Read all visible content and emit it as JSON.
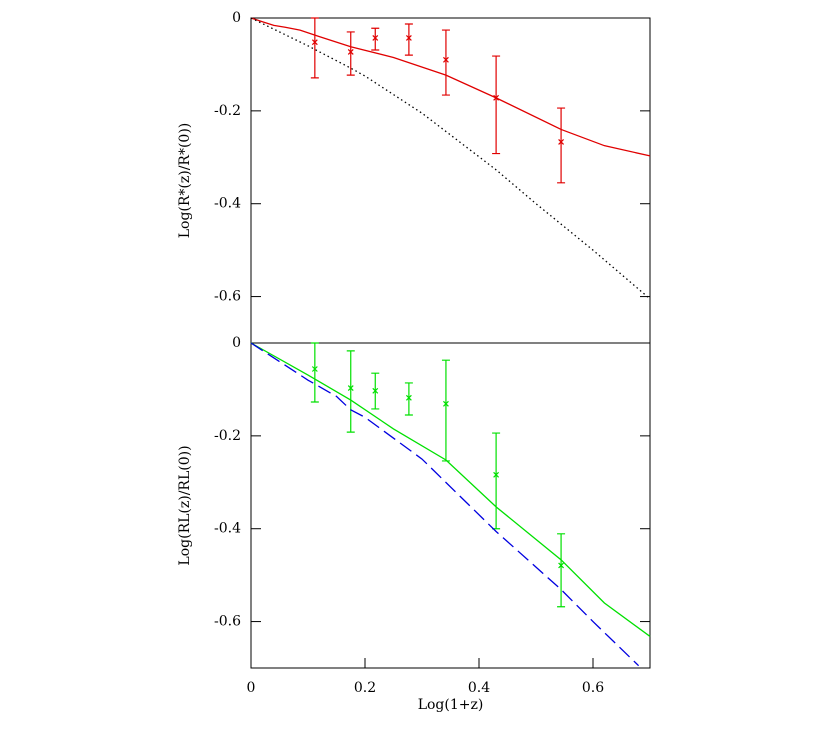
{
  "chart_data": [
    {
      "type": "line",
      "ylabel": "Log(R*(z)/R*(0))",
      "xlim": [
        0,
        0.7
      ],
      "ylim": [
        -0.7,
        0
      ],
      "yticks": [
        0,
        -0.2,
        -0.4,
        -0.6
      ],
      "series": [
        {
          "kind": "errorbar",
          "color": "#e00000",
          "x": [
            0.112,
            0.175,
            0.218,
            0.277,
            0.342,
            0.43,
            0.544
          ],
          "values": [
            -0.052,
            -0.073,
            -0.043,
            -0.043,
            -0.09,
            -0.172,
            -0.267
          ],
          "err_low": [
            0.077,
            0.05,
            0.026,
            0.037,
            0.076,
            0.12,
            0.088
          ],
          "err_high": [
            0.052,
            0.043,
            0.021,
            0.03,
            0.064,
            0.09,
            0.073
          ]
        },
        {
          "kind": "line",
          "style": "solid",
          "color": "#e00000",
          "x": [
            0,
            0.02,
            0.04,
            0.06,
            0.086,
            0.12,
            0.175,
            0.25,
            0.342,
            0.43,
            0.544,
            0.62,
            0.7
          ],
          "values": [
            0,
            -0.008,
            -0.016,
            -0.02,
            -0.026,
            -0.04,
            -0.062,
            -0.085,
            -0.123,
            -0.172,
            -0.24,
            -0.275,
            -0.297
          ]
        },
        {
          "kind": "line",
          "style": "dotted",
          "color": "#000000",
          "x": [
            0,
            0.1,
            0.175,
            0.2,
            0.3,
            0.43,
            0.5,
            0.6,
            0.7
          ],
          "values": [
            0,
            -0.06,
            -0.108,
            -0.125,
            -0.205,
            -0.327,
            -0.4,
            -0.5,
            -0.605
          ]
        }
      ]
    },
    {
      "type": "line",
      "ylabel": "Log(RL(z)/RL(0))",
      "xlabel": "Log(1+z)",
      "xlim": [
        0,
        0.7
      ],
      "ylim": [
        -0.7,
        0
      ],
      "xticks": [
        0,
        0.2,
        0.4,
        0.6
      ],
      "yticks": [
        0,
        -0.2,
        -0.4,
        -0.6
      ],
      "series": [
        {
          "kind": "errorbar",
          "color": "#00e000",
          "x": [
            0.112,
            0.175,
            0.218,
            0.277,
            0.342,
            0.43,
            0.544
          ],
          "values": [
            -0.056,
            -0.097,
            -0.103,
            -0.118,
            -0.131,
            -0.284,
            -0.479
          ],
          "err_low": [
            0.071,
            0.095,
            0.039,
            0.037,
            0.123,
            0.116,
            0.089
          ],
          "err_high": [
            0.056,
            0.08,
            0.038,
            0.032,
            0.094,
            0.09,
            0.068
          ]
        },
        {
          "kind": "line",
          "style": "solid",
          "color": "#00e000",
          "x": [
            0,
            0.1,
            0.175,
            0.25,
            0.342,
            0.43,
            0.544,
            0.62,
            0.7
          ],
          "values": [
            0,
            -0.069,
            -0.123,
            -0.185,
            -0.252,
            -0.353,
            -0.467,
            -0.56,
            -0.632
          ]
        },
        {
          "kind": "line",
          "style": "dashed",
          "color": "#0000e0",
          "x": [
            0,
            0.1,
            0.15,
            0.175,
            0.2,
            0.3,
            0.43,
            0.544,
            0.6,
            0.68
          ],
          "values": [
            0,
            -0.08,
            -0.115,
            -0.144,
            -0.16,
            -0.25,
            -0.406,
            -0.531,
            -0.6,
            -0.695
          ]
        }
      ]
    }
  ]
}
